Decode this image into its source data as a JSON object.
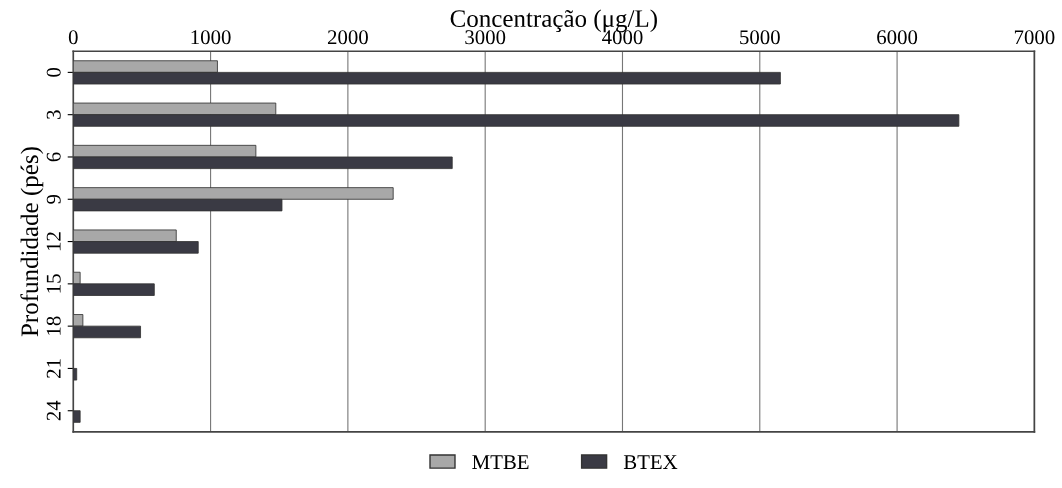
{
  "chart_data": {
    "type": "bar",
    "orientation": "horizontal",
    "xlabel": "Concentração (μg/L)",
    "ylabel": "Profundidade (pés)",
    "categories": [
      "0",
      "3",
      "6",
      "9",
      "12",
      "15",
      "18",
      "21",
      "24"
    ],
    "series": [
      {
        "name": "MTBE",
        "color": "#a8a8a8",
        "values": [
          1050,
          1475,
          1330,
          2330,
          750,
          50,
          70,
          0,
          0
        ]
      },
      {
        "name": "BTEX",
        "color": "#3a3a44",
        "values": [
          5150,
          6450,
          2760,
          1520,
          910,
          590,
          490,
          25,
          50
        ]
      }
    ],
    "xlim": [
      0,
      7000
    ],
    "xticks": [
      0,
      1000,
      2000,
      3000,
      4000,
      5000,
      6000,
      7000
    ],
    "grid": "x",
    "legend": "bottom"
  }
}
